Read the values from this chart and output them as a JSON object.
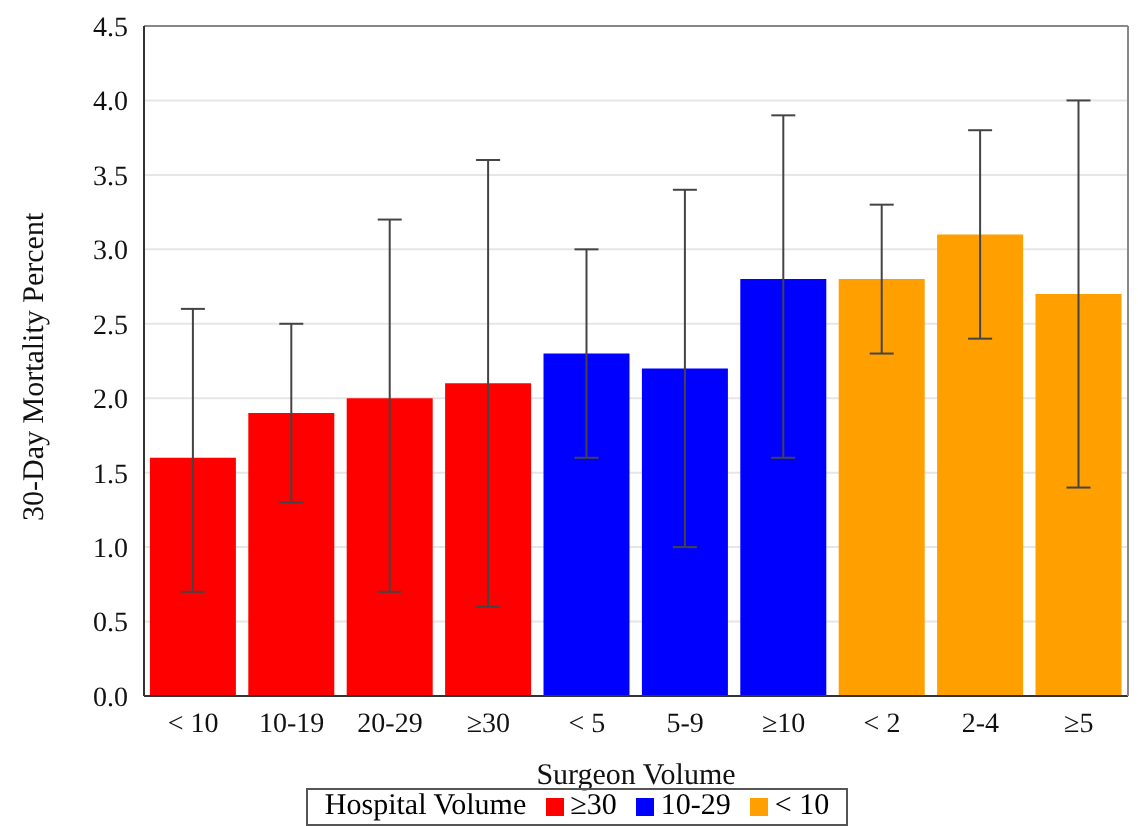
{
  "chart_data": {
    "type": "bar",
    "xlabel": "Surgeon Volume",
    "ylabel": "30-Day Mortality Percent",
    "legend_title": "Hospital Volume",
    "categories": [
      "< 10",
      "10-19",
      "20-29",
      "≥30",
      "< 5",
      "5-9",
      "≥10",
      "< 2",
      "2-4",
      "≥5"
    ],
    "series": [
      {
        "name": "≥30",
        "color": "#ff0000",
        "values": [
          1.6,
          1.9,
          2.0,
          2.1,
          null,
          null,
          null,
          null,
          null,
          null
        ],
        "errors": [
          [
            0.7,
            2.6
          ],
          [
            1.3,
            2.5
          ],
          [
            0.7,
            3.2
          ],
          [
            0.6,
            3.6
          ],
          null,
          null,
          null,
          null,
          null,
          null
        ]
      },
      {
        "name": "10-29",
        "color": "#0000ff",
        "values": [
          null,
          null,
          null,
          null,
          2.3,
          2.2,
          2.8,
          null,
          null,
          null
        ],
        "errors": [
          null,
          null,
          null,
          null,
          [
            1.6,
            3.0
          ],
          [
            1.0,
            3.4
          ],
          [
            1.6,
            3.9
          ],
          null,
          null,
          null
        ]
      },
      {
        "name": "< 10",
        "color": "#ff9f00",
        "values": [
          null,
          null,
          null,
          null,
          null,
          null,
          null,
          2.8,
          3.1,
          2.7
        ],
        "errors": [
          null,
          null,
          null,
          null,
          null,
          null,
          null,
          [
            2.3,
            3.3
          ],
          [
            2.4,
            3.8
          ],
          [
            1.4,
            4.0
          ]
        ]
      }
    ],
    "stacked": true,
    "ylim": [
      0,
      4.5
    ],
    "yticks": [
      {
        "value": 0,
        "label": "0.0"
      },
      {
        "value": 0.5,
        "label": "0.5"
      },
      {
        "value": 1,
        "label": "1.0"
      },
      {
        "value": 1.5,
        "label": "1.5"
      },
      {
        "value": 2,
        "label": "2.0"
      },
      {
        "value": 2.5,
        "label": "2.5"
      },
      {
        "value": 3,
        "label": "3.0"
      },
      {
        "value": 3.5,
        "label": "3.5"
      },
      {
        "value": 4,
        "label": "4.0"
      },
      {
        "value": 4.5,
        "label": "4.5"
      }
    ],
    "grid": "y",
    "legend": "bottom"
  }
}
